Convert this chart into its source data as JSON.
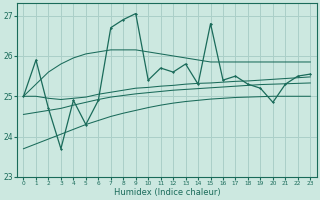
{
  "xlabel": "Humidex (Indice chaleur)",
  "bg_color": "#cce8e0",
  "grid_color": "#aacfc8",
  "line_color": "#1a6b5a",
  "xlim": [
    -0.5,
    23.5
  ],
  "ylim": [
    23.0,
    27.3
  ],
  "yticks": [
    23,
    24,
    25,
    26,
    27
  ],
  "xticks": [
    0,
    1,
    2,
    3,
    4,
    5,
    6,
    7,
    8,
    9,
    10,
    11,
    12,
    13,
    14,
    15,
    16,
    17,
    18,
    19,
    20,
    21,
    22,
    23
  ],
  "main_data": [
    25.0,
    25.9,
    24.7,
    23.7,
    24.9,
    24.3,
    24.9,
    26.7,
    26.9,
    27.05,
    25.4,
    25.7,
    25.6,
    25.8,
    25.3,
    26.8,
    25.4,
    25.5,
    25.3,
    25.2,
    24.85,
    25.3,
    25.5,
    25.55
  ],
  "envelope_high": [
    25.0,
    25.3,
    25.6,
    25.8,
    25.95,
    26.05,
    26.1,
    26.15,
    26.15,
    26.15,
    26.1,
    26.05,
    26.0,
    25.95,
    25.9,
    25.85,
    25.85,
    25.85,
    25.85,
    25.85,
    25.85,
    25.85,
    25.85,
    25.85
  ],
  "envelope_low": [
    23.7,
    23.82,
    23.94,
    24.06,
    24.18,
    24.3,
    24.4,
    24.5,
    24.58,
    24.65,
    24.72,
    24.78,
    24.83,
    24.87,
    24.9,
    24.93,
    24.95,
    24.97,
    24.98,
    24.99,
    25.0,
    25.0,
    25.0,
    25.0
  ],
  "mid_line1": [
    25.0,
    25.0,
    24.95,
    24.92,
    24.95,
    24.98,
    25.05,
    25.1,
    25.15,
    25.2,
    25.22,
    25.25,
    25.27,
    25.3,
    25.32,
    25.33,
    25.35,
    25.37,
    25.38,
    25.4,
    25.42,
    25.44,
    25.46,
    25.48
  ],
  "mid_line2": [
    24.55,
    24.6,
    24.65,
    24.7,
    24.78,
    24.85,
    24.92,
    24.98,
    25.02,
    25.06,
    25.09,
    25.12,
    25.15,
    25.17,
    25.19,
    25.21,
    25.23,
    25.25,
    25.27,
    25.29,
    25.3,
    25.31,
    25.32,
    25.33
  ]
}
